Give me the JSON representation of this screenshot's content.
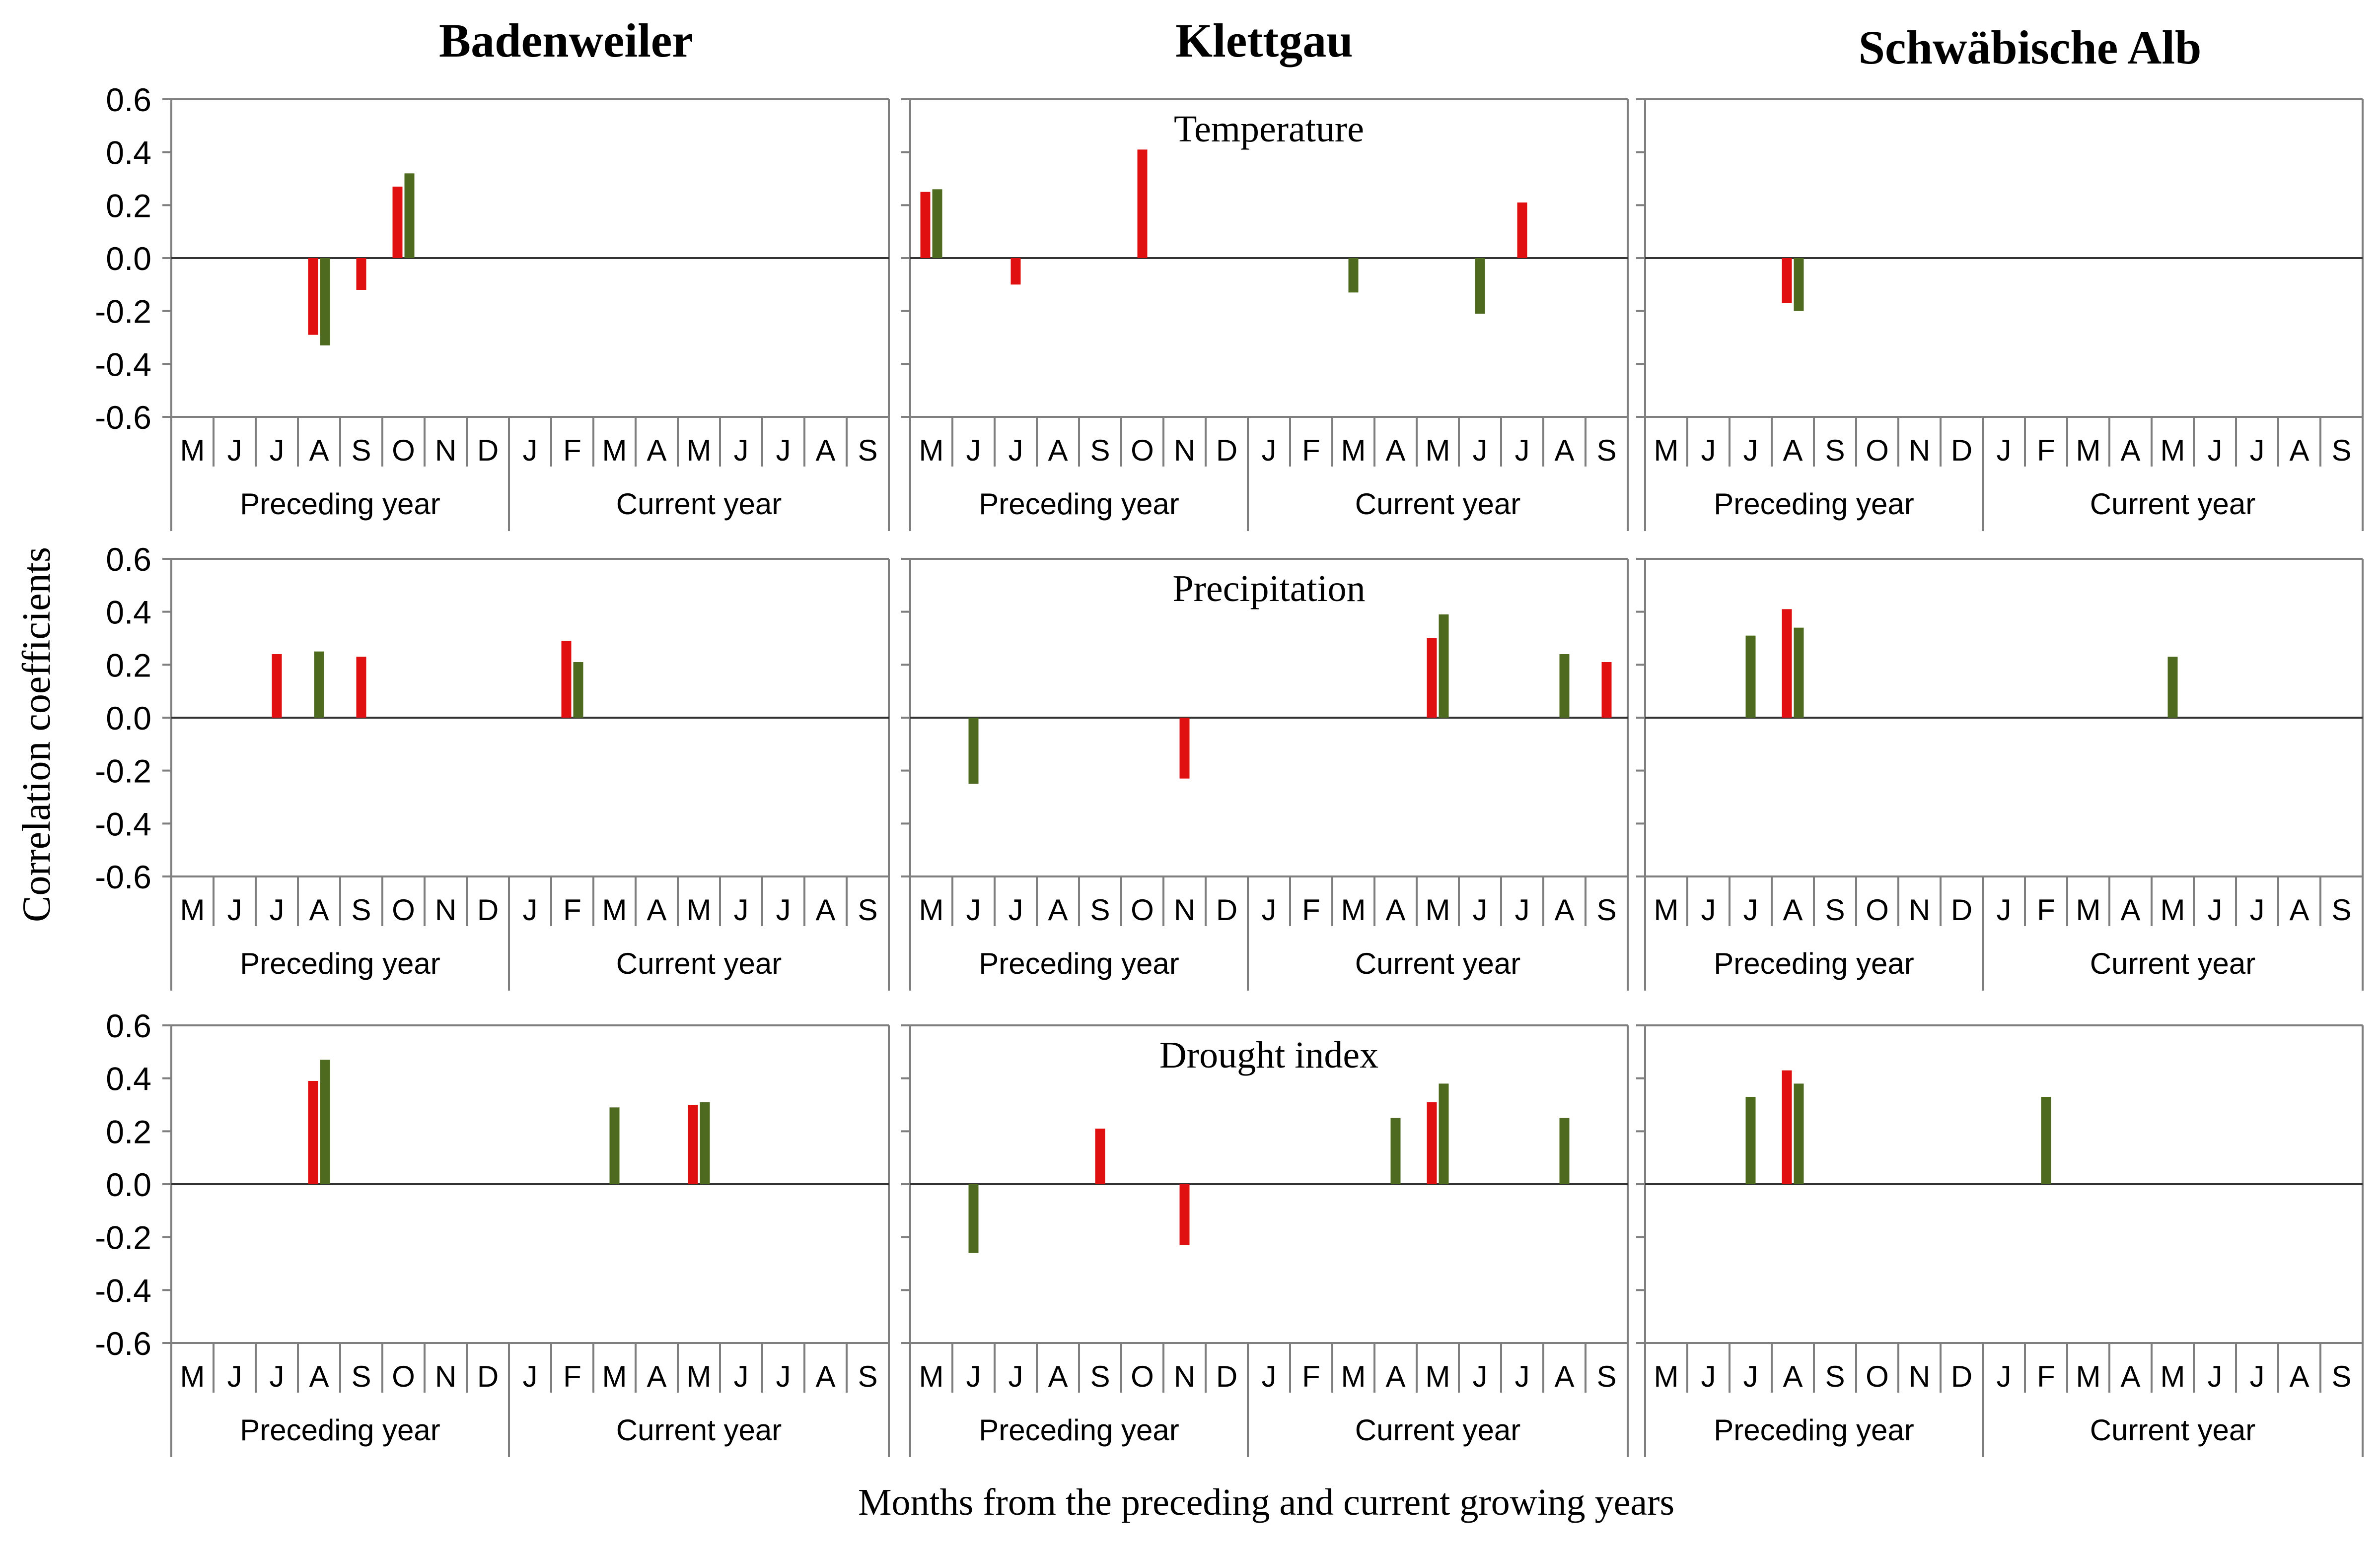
{
  "figure": {
    "sites": [
      "Badenweiler",
      "Klettgau",
      "Schwäbische Alb"
    ],
    "ylabel": "Correlation coefficients",
    "xlabel": "Months from the preceding and current growing years",
    "month_letters": [
      "M",
      "J",
      "J",
      "A",
      "S",
      "O",
      "N",
      "D",
      "J",
      "F",
      "M",
      "A",
      "M",
      "J",
      "J",
      "A",
      "S"
    ],
    "year_labels": [
      "Preceding year",
      "Current year"
    ],
    "yticks": [
      "0.6",
      "0.4",
      "0.2",
      "0.0",
      "-0.2",
      "-0.4",
      "-0.6"
    ],
    "colors": {
      "red": "#e01010",
      "green": "#4e6a1f",
      "axis": "#7f7f7f"
    }
  },
  "chart_data": [
    {
      "type": "bar",
      "variable": "Temperature",
      "site": "Badenweiler",
      "title": "",
      "ylim": [
        -0.6,
        0.6
      ],
      "categories": [
        "M",
        "J",
        "J",
        "A",
        "S",
        "O",
        "N",
        "D",
        "J",
        "F",
        "M",
        "A",
        "M",
        "J",
        "J",
        "A",
        "S"
      ],
      "series": [
        {
          "name": "red",
          "values": [
            0,
            0,
            0,
            -0.29,
            -0.12,
            0.27,
            0,
            0,
            0,
            0,
            0,
            0,
            0,
            0,
            0,
            0,
            0
          ]
        },
        {
          "name": "green",
          "values": [
            0,
            0,
            0,
            -0.33,
            0,
            0.32,
            0,
            0,
            0,
            0,
            0,
            0,
            0,
            0,
            0,
            0,
            0
          ]
        }
      ]
    },
    {
      "type": "bar",
      "variable": "Temperature",
      "site": "Klettgau",
      "title": "Temperature",
      "ylim": [
        -0.6,
        0.6
      ],
      "categories": [
        "M",
        "J",
        "J",
        "A",
        "S",
        "O",
        "N",
        "D",
        "J",
        "F",
        "M",
        "A",
        "M",
        "J",
        "J",
        "A",
        "S"
      ],
      "series": [
        {
          "name": "red",
          "values": [
            0.25,
            0,
            -0.1,
            0,
            0,
            0.41,
            0,
            0,
            0,
            0,
            0,
            0,
            0,
            0,
            0.21,
            0,
            0
          ]
        },
        {
          "name": "green",
          "values": [
            0.26,
            0,
            0,
            0,
            0,
            0,
            0,
            0,
            0,
            0,
            -0.13,
            0,
            0,
            -0.21,
            0,
            0,
            0
          ]
        }
      ]
    },
    {
      "type": "bar",
      "variable": "Temperature",
      "site": "Schwäbische Alb",
      "title": "",
      "ylim": [
        -0.6,
        0.6
      ],
      "categories": [
        "M",
        "J",
        "J",
        "A",
        "S",
        "O",
        "N",
        "D",
        "J",
        "F",
        "M",
        "A",
        "M",
        "J",
        "J",
        "A",
        "S"
      ],
      "series": [
        {
          "name": "red",
          "values": [
            0,
            0,
            0,
            -0.17,
            0,
            0,
            0,
            0,
            0,
            0,
            0,
            0,
            0,
            0,
            0,
            0,
            0
          ]
        },
        {
          "name": "green",
          "values": [
            0,
            0,
            0,
            -0.2,
            0,
            0,
            0,
            0,
            0,
            0,
            0,
            0,
            0,
            0,
            0,
            0,
            0
          ]
        }
      ]
    },
    {
      "type": "bar",
      "variable": "Precipitation",
      "site": "Badenweiler",
      "title": "",
      "ylim": [
        -0.6,
        0.6
      ],
      "categories": [
        "M",
        "J",
        "J",
        "A",
        "S",
        "O",
        "N",
        "D",
        "J",
        "F",
        "M",
        "A",
        "M",
        "J",
        "J",
        "A",
        "S"
      ],
      "series": [
        {
          "name": "red",
          "values": [
            0,
            0,
            0.24,
            0,
            0.23,
            0,
            0,
            0,
            0,
            0.29,
            0,
            0,
            0,
            0,
            0,
            0,
            0
          ]
        },
        {
          "name": "green",
          "values": [
            0,
            0,
            0,
            0.25,
            0,
            0,
            0,
            0,
            0,
            0.21,
            0,
            0,
            0,
            0,
            0,
            0,
            0
          ]
        }
      ]
    },
    {
      "type": "bar",
      "variable": "Precipitation",
      "site": "Klettgau",
      "title": "Precipitation",
      "ylim": [
        -0.6,
        0.6
      ],
      "categories": [
        "M",
        "J",
        "J",
        "A",
        "S",
        "O",
        "N",
        "D",
        "J",
        "F",
        "M",
        "A",
        "M",
        "J",
        "J",
        "A",
        "S"
      ],
      "series": [
        {
          "name": "red",
          "values": [
            0,
            0,
            0,
            0,
            0,
            0,
            -0.23,
            0,
            0,
            0,
            0,
            0,
            0.3,
            0,
            0,
            0,
            0.21
          ]
        },
        {
          "name": "green",
          "values": [
            0,
            -0.25,
            0,
            0,
            0,
            0,
            0,
            0,
            0,
            0,
            0,
            0,
            0.39,
            0,
            0,
            0.24,
            0
          ]
        }
      ]
    },
    {
      "type": "bar",
      "variable": "Precipitation",
      "site": "Schwäbische Alb",
      "title": "",
      "ylim": [
        -0.6,
        0.6
      ],
      "categories": [
        "M",
        "J",
        "J",
        "A",
        "S",
        "O",
        "N",
        "D",
        "J",
        "F",
        "M",
        "A",
        "M",
        "J",
        "J",
        "A",
        "S"
      ],
      "series": [
        {
          "name": "red",
          "values": [
            0,
            0,
            0,
            0.41,
            0,
            0,
            0,
            0,
            0,
            0,
            0,
            0,
            0,
            0,
            0,
            0,
            0
          ]
        },
        {
          "name": "green",
          "values": [
            0,
            0,
            0.31,
            0.34,
            0,
            0,
            0,
            0,
            0,
            0,
            0,
            0,
            0.23,
            0,
            0,
            0,
            0
          ]
        }
      ]
    },
    {
      "type": "bar",
      "variable": "Drought index",
      "site": "Badenweiler",
      "title": "",
      "ylim": [
        -0.6,
        0.6
      ],
      "categories": [
        "M",
        "J",
        "J",
        "A",
        "S",
        "O",
        "N",
        "D",
        "J",
        "F",
        "M",
        "A",
        "M",
        "J",
        "J",
        "A",
        "S"
      ],
      "series": [
        {
          "name": "red",
          "values": [
            0,
            0,
            0,
            0.39,
            0,
            0,
            0,
            0,
            0,
            0,
            0,
            0,
            0.3,
            0,
            0,
            0,
            0
          ]
        },
        {
          "name": "green",
          "values": [
            0,
            0,
            0,
            0.47,
            0,
            0,
            0,
            0,
            0,
            0,
            0.29,
            0,
            0.31,
            0,
            0,
            0,
            0
          ]
        }
      ]
    },
    {
      "type": "bar",
      "variable": "Drought index",
      "site": "Klettgau",
      "title": "Drought index",
      "ylim": [
        -0.6,
        0.6
      ],
      "categories": [
        "M",
        "J",
        "J",
        "A",
        "S",
        "O",
        "N",
        "D",
        "J",
        "F",
        "M",
        "A",
        "M",
        "J",
        "J",
        "A",
        "S"
      ],
      "series": [
        {
          "name": "red",
          "values": [
            0,
            0,
            0,
            0,
            0.21,
            0,
            -0.23,
            0,
            0,
            0,
            0,
            0,
            0.31,
            0,
            0,
            0,
            0
          ]
        },
        {
          "name": "green",
          "values": [
            0,
            -0.26,
            0,
            0,
            0,
            0,
            0,
            0,
            0,
            0,
            0,
            0.25,
            0.38,
            0,
            0,
            0.25,
            0
          ]
        }
      ]
    },
    {
      "type": "bar",
      "variable": "Drought index",
      "site": "Schwäbische Alb",
      "title": "",
      "ylim": [
        -0.6,
        0.6
      ],
      "categories": [
        "M",
        "J",
        "J",
        "A",
        "S",
        "O",
        "N",
        "D",
        "J",
        "F",
        "M",
        "A",
        "M",
        "J",
        "J",
        "A",
        "S"
      ],
      "series": [
        {
          "name": "red",
          "values": [
            0,
            0,
            0,
            0.43,
            0,
            0,
            0,
            0,
            0,
            0,
            0,
            0,
            0,
            0,
            0,
            0,
            0
          ]
        },
        {
          "name": "green",
          "values": [
            0,
            0,
            0.33,
            0.38,
            0,
            0,
            0,
            0,
            0,
            0.33,
            0,
            0,
            0,
            0,
            0,
            0,
            0
          ]
        }
      ]
    }
  ]
}
